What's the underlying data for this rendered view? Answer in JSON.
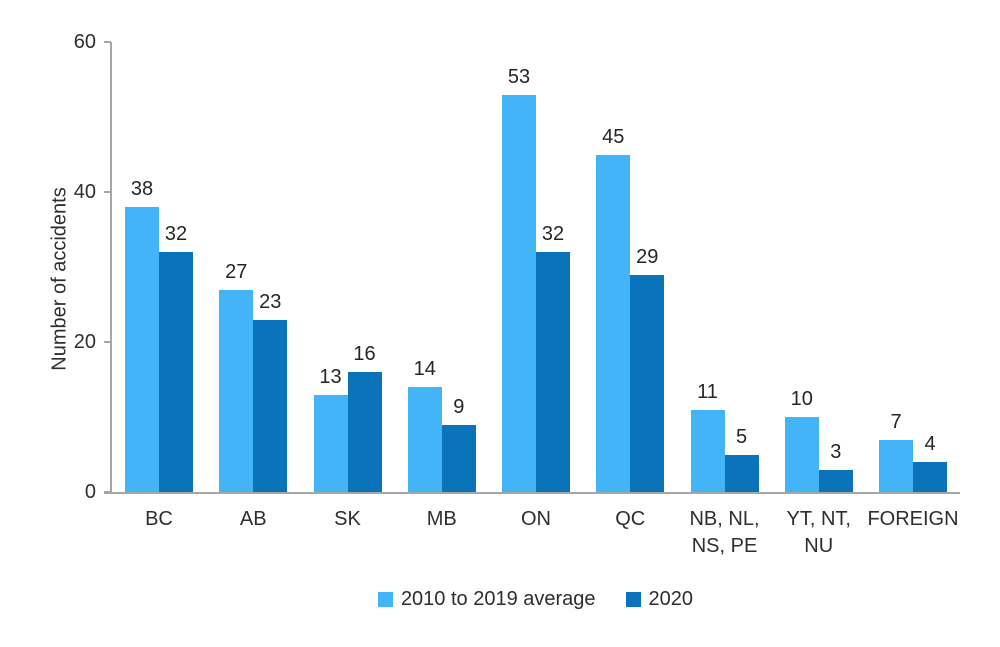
{
  "chart_data": {
    "type": "bar",
    "title": "",
    "xlabel": "",
    "ylabel": "Number of accidents",
    "ylim": [
      0,
      60
    ],
    "yticks": [
      0,
      20,
      40,
      60
    ],
    "grid": false,
    "legend_position": "bottom",
    "data_labels": true,
    "categories": [
      "BC",
      "AB",
      "SK",
      "MB",
      "ON",
      "QC",
      "NB, NL, NS, PE",
      "YT, NT, NU",
      "FOREIGN"
    ],
    "categories_display": [
      [
        "BC"
      ],
      [
        "AB"
      ],
      [
        "SK"
      ],
      [
        "MB"
      ],
      [
        "ON"
      ],
      [
        "QC"
      ],
      [
        "NB, NL,",
        "NS, PE"
      ],
      [
        "YT, NT,",
        "NU"
      ],
      [
        "FOREIGN"
      ]
    ],
    "series": [
      {
        "name": "2010 to 2019 average",
        "color": "#42B4F7",
        "values": [
          38,
          27,
          13,
          14,
          53,
          45,
          11,
          10,
          7
        ]
      },
      {
        "name": "2020",
        "color": "#0B73BA",
        "values": [
          32,
          23,
          16,
          9,
          32,
          29,
          5,
          3,
          4
        ]
      }
    ]
  },
  "colors": {
    "axis": "#A6A6A6",
    "text": "#2E2E2E"
  }
}
